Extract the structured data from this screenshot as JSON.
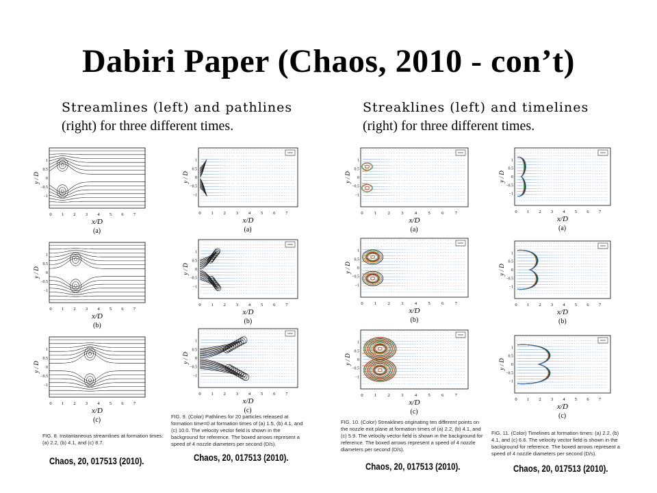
{
  "title": "Dabiri Paper (Chaos, 2010 - con’t)",
  "left_heading": {
    "line1": "Streamlines (left) and pathlines",
    "line2": "(right) for three different times."
  },
  "right_heading": {
    "line1": "Streaklines (left) and timelines",
    "line2": "(right) for three different times."
  },
  "axis": {
    "ylabel": "y / D",
    "xlabel": "x/D",
    "yticks": [
      "1",
      "0.5",
      "0",
      "−0.5",
      "−1"
    ],
    "xticks": [
      "0",
      "1",
      "2",
      "3",
      "4",
      "5",
      "6",
      "7"
    ]
  },
  "sublabels": [
    "(a)",
    "(b)",
    "(c)"
  ],
  "figures": [
    {
      "id": "fig8",
      "caption": "FIG. 8. Instantaneous streamlines at formation times: (a) 2.2, (b) 4.1, and (c) 8.7.",
      "citation": "Chaos, 20, 017513 (2010)."
    },
    {
      "id": "fig9",
      "caption": "FIG. 9. (Color) Pathlines for 20 particles released at formation time=0 at formation times of (a) 1.5, (b) 4.1, and (c) 10.0. The velocity vector field is shown in the background for reference. The boxed arrows represent a speed of 4 nozzle diameters per second (D/s).",
      "citation": "Chaos, 20, 017513 (2010)."
    },
    {
      "id": "fig10",
      "caption": "FIG. 10. (Color) Streaklines originating ten different points on the nozzle exit plane at formation times of (a) 2.2, (b) 4.1, and (c) 5.9. The velocity vector field is shown in the background for reference. The boxed arrows represent a speed of 4 nozzle diameters per second (D/s).",
      "citation": "Chaos, 20, 017513 (2010)."
    },
    {
      "id": "fig11",
      "caption": "FIG. 11. (Color) Timelines at formation times: (a) 2.2, (b) 4.1, and (c) 6.6. The velocity vector field is shown in the background for reference. The boxed arrows represent a speed of 4 nozzle diameters per second (D/s).",
      "citation": "Chaos, 20, 017513 (2010)."
    }
  ],
  "colors": {
    "vector": "#3a6fb0",
    "streak_red": "#d9503a",
    "streak_green": "#2f8f3a",
    "ink": "#111111"
  }
}
